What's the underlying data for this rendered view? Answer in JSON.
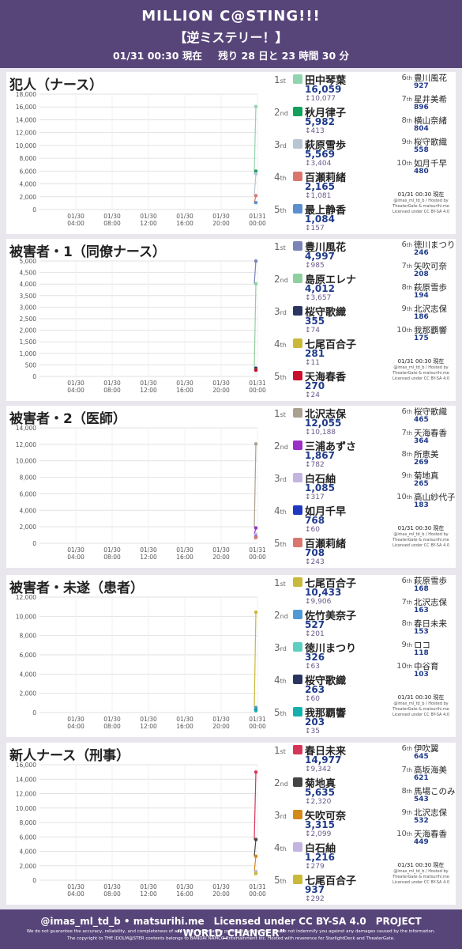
{
  "header": {
    "title": "MILLION C@STING!!!",
    "subtitle": "【逆ミステリー！】",
    "time": "01/31 00:30 現在",
    "remaining": "残り 28 日と 23 時間 30 分"
  },
  "x_ticks": [
    [
      "01/30",
      "04:00"
    ],
    [
      "01/30",
      "08:00"
    ],
    [
      "01/30",
      "12:00"
    ],
    [
      "01/30",
      "16:00"
    ],
    [
      "01/30",
      "20:00"
    ],
    [
      "01/31",
      "00:00"
    ]
  ],
  "sections": [
    {
      "title": "犯人（ナース）",
      "stamp": [
        "01/31 00:30 現在",
        "@imas_ml_td_b / Hosted by",
        "TheaterGate & matsurihi.me",
        "Licensed under CC BY-SA 4.0"
      ],
      "top5": [
        {
          "pos": "1",
          "suf": "st",
          "name": "田中琴葉",
          "value": "16,059",
          "delta": "↕10,077",
          "color": "#92d4b0"
        },
        {
          "pos": "2",
          "suf": "nd",
          "name": "秋月律子",
          "value": "5,982",
          "delta": "↕413",
          "color": "#12a05a"
        },
        {
          "pos": "3",
          "suf": "rd",
          "name": "萩原雪歩",
          "value": "5,569",
          "delta": "↕3,404",
          "color": "#b9c5d2"
        },
        {
          "pos": "4",
          "suf": "th",
          "name": "百瀬莉緒",
          "value": "2,165",
          "delta": "↕1,081",
          "color": "#d9776f"
        },
        {
          "pos": "5",
          "suf": "th",
          "name": "最上静香",
          "value": "1,084",
          "delta": "↕157",
          "color": "#5c8fd0"
        }
      ],
      "others": [
        {
          "pos": "6",
          "suf": "th",
          "name": "豊川風花",
          "value": "927"
        },
        {
          "pos": "7",
          "suf": "th",
          "name": "星井美希",
          "value": "896"
        },
        {
          "pos": "8",
          "suf": "th",
          "name": "横山奈緒",
          "value": "804"
        },
        {
          "pos": "9",
          "suf": "th",
          "name": "桜守歌織",
          "value": "558"
        },
        {
          "pos": "10",
          "suf": "th",
          "name": "如月千早",
          "value": "480"
        }
      ]
    },
    {
      "title": "被害者・1（同僚ナース）",
      "stamp": [
        "01/31 00:30 現在",
        "@imas_ml_td_b / Hosted by",
        "TheaterGate & matsurihi.me",
        "Licensed under CC BY-SA 4.0"
      ],
      "top5": [
        {
          "pos": "1",
          "suf": "st",
          "name": "豊川風花",
          "value": "4,997",
          "delta": "↕985",
          "color": "#7a84b8"
        },
        {
          "pos": "2",
          "suf": "nd",
          "name": "島原エレナ",
          "value": "4,012",
          "delta": "↕3,657",
          "color": "#8fcf9f"
        },
        {
          "pos": "3",
          "suf": "rd",
          "name": "桜守歌織",
          "value": "355",
          "delta": "↕74",
          "color": "#2a3560"
        },
        {
          "pos": "4",
          "suf": "th",
          "name": "七尾百合子",
          "value": "281",
          "delta": "↕11",
          "color": "#c9b93a"
        },
        {
          "pos": "5",
          "suf": "th",
          "name": "天海春香",
          "value": "270",
          "delta": "↕24",
          "color": "#c8102e"
        }
      ],
      "others": [
        {
          "pos": "6",
          "suf": "th",
          "name": "徳川まつり",
          "value": "246"
        },
        {
          "pos": "7",
          "suf": "th",
          "name": "矢吹可奈",
          "value": "208"
        },
        {
          "pos": "8",
          "suf": "th",
          "name": "萩原雪歩",
          "value": "194"
        },
        {
          "pos": "9",
          "suf": "th",
          "name": "北沢志保",
          "value": "186"
        },
        {
          "pos": "10",
          "suf": "th",
          "name": "我那覇響",
          "value": "175"
        }
      ]
    },
    {
      "title": "被害者・2（医師）",
      "stamp": [
        "01/31 00:30 現在",
        "@imas_ml_td_b / Hosted by",
        "TheaterGate & matsurihi.me",
        "Licensed under CC BY-SA 4.0"
      ],
      "top5": [
        {
          "pos": "1",
          "suf": "st",
          "name": "北沢志保",
          "value": "12,055",
          "delta": "↕10,188",
          "color": "#aaa08f"
        },
        {
          "pos": "2",
          "suf": "nd",
          "name": "三浦あずさ",
          "value": "1,867",
          "delta": "↕782",
          "color": "#9b30c8"
        },
        {
          "pos": "3",
          "suf": "rd",
          "name": "白石紬",
          "value": "1,085",
          "delta": "↕317",
          "color": "#c4b4e0"
        },
        {
          "pos": "4",
          "suf": "th",
          "name": "如月千早",
          "value": "768",
          "delta": "↕60",
          "color": "#2238c0"
        },
        {
          "pos": "5",
          "suf": "th",
          "name": "百瀬莉緒",
          "value": "708",
          "delta": "↕243",
          "color": "#d9776f"
        }
      ],
      "others": [
        {
          "pos": "6",
          "suf": "th",
          "name": "桜守歌織",
          "value": "465"
        },
        {
          "pos": "7",
          "suf": "th",
          "name": "天海春香",
          "value": "364"
        },
        {
          "pos": "8",
          "suf": "th",
          "name": "所恵美",
          "value": "269"
        },
        {
          "pos": "9",
          "suf": "th",
          "name": "菊地真",
          "value": "265"
        },
        {
          "pos": "10",
          "suf": "th",
          "name": "高山紗代子",
          "value": "183"
        }
      ]
    },
    {
      "title": "被害者・未遂（患者）",
      "stamp": [
        "01/31 00:30 現在",
        "@imas_ml_td_b / Hosted by",
        "TheaterGate & matsurihi.me",
        "Licensed under CC BY-SA 4.0"
      ],
      "top5": [
        {
          "pos": "1",
          "suf": "st",
          "name": "七尾百合子",
          "value": "10,433",
          "delta": "↕9,906",
          "color": "#c9b93a"
        },
        {
          "pos": "2",
          "suf": "nd",
          "name": "佐竹美奈子",
          "value": "527",
          "delta": "↕201",
          "color": "#4f9ad6"
        },
        {
          "pos": "3",
          "suf": "rd",
          "name": "徳川まつり",
          "value": "326",
          "delta": "↕63",
          "color": "#5ccfc0"
        },
        {
          "pos": "4",
          "suf": "th",
          "name": "桜守歌織",
          "value": "263",
          "delta": "↕60",
          "color": "#2a3560"
        },
        {
          "pos": "5",
          "suf": "th",
          "name": "我那覇響",
          "value": "203",
          "delta": "↕35",
          "color": "#14b0b0"
        }
      ],
      "others": [
        {
          "pos": "6",
          "suf": "th",
          "name": "萩原雪歩",
          "value": "168"
        },
        {
          "pos": "7",
          "suf": "th",
          "name": "北沢志保",
          "value": "163"
        },
        {
          "pos": "8",
          "suf": "th",
          "name": "春日未来",
          "value": "153"
        },
        {
          "pos": "9",
          "suf": "th",
          "name": "ロコ",
          "value": "118"
        },
        {
          "pos": "10",
          "suf": "th",
          "name": "中谷育",
          "value": "103"
        }
      ]
    },
    {
      "title": "新人ナース（刑事）",
      "stamp": [
        "01/31 00:30 現在",
        "@imas_ml_td_b / Hosted by",
        "TheaterGate & matsurihi.me",
        "Licensed under CC BY-SA 4.0"
      ],
      "top5": [
        {
          "pos": "1",
          "suf": "st",
          "name": "春日未来",
          "value": "14,977",
          "delta": "↕9,342",
          "color": "#d6355a"
        },
        {
          "pos": "2",
          "suf": "nd",
          "name": "菊地真",
          "value": "5,635",
          "delta": "↕2,320",
          "color": "#444444"
        },
        {
          "pos": "3",
          "suf": "rd",
          "name": "矢吹可奈",
          "value": "3,315",
          "delta": "↕2,099",
          "color": "#d38a1a"
        },
        {
          "pos": "4",
          "suf": "th",
          "name": "白石紬",
          "value": "1,216",
          "delta": "↕279",
          "color": "#c4b4e0"
        },
        {
          "pos": "5",
          "suf": "th",
          "name": "七尾百合子",
          "value": "937",
          "delta": "↕292",
          "color": "#c9b93a"
        }
      ],
      "others": [
        {
          "pos": "6",
          "suf": "th",
          "name": "伊吹翼",
          "value": "645"
        },
        {
          "pos": "7",
          "suf": "th",
          "name": "高坂海美",
          "value": "621"
        },
        {
          "pos": "8",
          "suf": "th",
          "name": "馬場このみ",
          "value": "543"
        },
        {
          "pos": "9",
          "suf": "th",
          "name": "北沢志保",
          "value": "532"
        },
        {
          "pos": "10",
          "suf": "th",
          "name": "天海春香",
          "value": "449"
        }
      ]
    }
  ],
  "footer": {
    "line1": "@imas_ml_td_b • matsurihi.me　Licensed under CC BY-SA 4.0　PROJECT “WORLD_CHANGER”",
    "line2": "We do not guarantee the accuracy, reliability, and completeness of any of the information provided by this post. We do not indemnify you against any damages caused by the information.",
    "line3": "The copyright to THE IDOLM@STER contents belongs to BANDAI NAMCO Entertainment Inc. Hosted with reverence for StarlightDeck and TheaterGate."
  },
  "chart_data": [
    {
      "type": "line",
      "ylim": [
        0,
        18000
      ],
      "y_ticks": [
        0,
        2000,
        4000,
        6000,
        8000,
        10000,
        12000,
        14000,
        16000,
        18000
      ],
      "series": [
        {
          "name": "田中琴葉",
          "color": "#92d4b0",
          "values": [
            5982,
            16059
          ]
        },
        {
          "name": "秋月律子",
          "color": "#12a05a",
          "values": [
            5569,
            5982
          ]
        },
        {
          "name": "萩原雪歩",
          "color": "#b9c5d2",
          "values": [
            2165,
            5569
          ]
        },
        {
          "name": "百瀬莉緒",
          "color": "#d9776f",
          "values": [
            1084,
            2165
          ]
        },
        {
          "name": "最上静香",
          "color": "#5c8fd0",
          "values": [
            927,
            1084
          ]
        }
      ]
    },
    {
      "type": "line",
      "ylim": [
        0,
        5000
      ],
      "y_ticks": [
        0,
        500,
        1000,
        1500,
        2000,
        2500,
        3000,
        3500,
        4000,
        4500,
        5000
      ],
      "series": [
        {
          "name": "豊川風花",
          "color": "#7a84b8",
          "values": [
            4012,
            4997
          ]
        },
        {
          "name": "島原エレナ",
          "color": "#8fcf9f",
          "values": [
            355,
            4012
          ]
        },
        {
          "name": "桜守歌織",
          "color": "#2a3560",
          "values": [
            281,
            355
          ]
        },
        {
          "name": "七尾百合子",
          "color": "#c9b93a",
          "values": [
            270,
            281
          ]
        },
        {
          "name": "天海春香",
          "color": "#c8102e",
          "values": [
            246,
            270
          ]
        }
      ]
    },
    {
      "type": "line",
      "ylim": [
        0,
        14000
      ],
      "y_ticks": [
        0,
        2000,
        4000,
        6000,
        8000,
        10000,
        12000,
        14000
      ],
      "series": [
        {
          "name": "北沢志保",
          "color": "#aaa08f",
          "values": [
            1867,
            12055
          ]
        },
        {
          "name": "三浦あずさ",
          "color": "#9b30c8",
          "values": [
            1085,
            1867
          ]
        },
        {
          "name": "白石紬",
          "color": "#c4b4e0",
          "values": [
            768,
            1085
          ]
        },
        {
          "name": "如月千早",
          "color": "#2238c0",
          "values": [
            708,
            768
          ]
        },
        {
          "name": "百瀬莉緒",
          "color": "#d9776f",
          "values": [
            465,
            708
          ]
        }
      ]
    },
    {
      "type": "line",
      "ylim": [
        0,
        12000
      ],
      "y_ticks": [
        0,
        2000,
        4000,
        6000,
        8000,
        10000,
        12000
      ],
      "series": [
        {
          "name": "七尾百合子",
          "color": "#c9b93a",
          "values": [
            527,
            10433
          ]
        },
        {
          "name": "佐竹美奈子",
          "color": "#4f9ad6",
          "values": [
            326,
            527
          ]
        },
        {
          "name": "徳川まつり",
          "color": "#5ccfc0",
          "values": [
            263,
            326
          ]
        },
        {
          "name": "桜守歌織",
          "color": "#2a3560",
          "values": [
            203,
            263
          ]
        },
        {
          "name": "我那覇響",
          "color": "#14b0b0",
          "values": [
            168,
            203
          ]
        }
      ]
    },
    {
      "type": "line",
      "ylim": [
        0,
        16000
      ],
      "y_ticks": [
        0,
        2000,
        4000,
        6000,
        8000,
        10000,
        12000,
        14000,
        16000
      ],
      "series": [
        {
          "name": "春日未来",
          "color": "#d6355a",
          "values": [
            5635,
            14977
          ]
        },
        {
          "name": "菊地真",
          "color": "#444444",
          "values": [
            3315,
            5635
          ]
        },
        {
          "name": "矢吹可奈",
          "color": "#d38a1a",
          "values": [
            1216,
            3315
          ]
        },
        {
          "name": "白石紬",
          "color": "#c4b4e0",
          "values": [
            937,
            1216
          ]
        },
        {
          "name": "七尾百合子",
          "color": "#c9b93a",
          "values": [
            645,
            937
          ]
        }
      ]
    }
  ]
}
